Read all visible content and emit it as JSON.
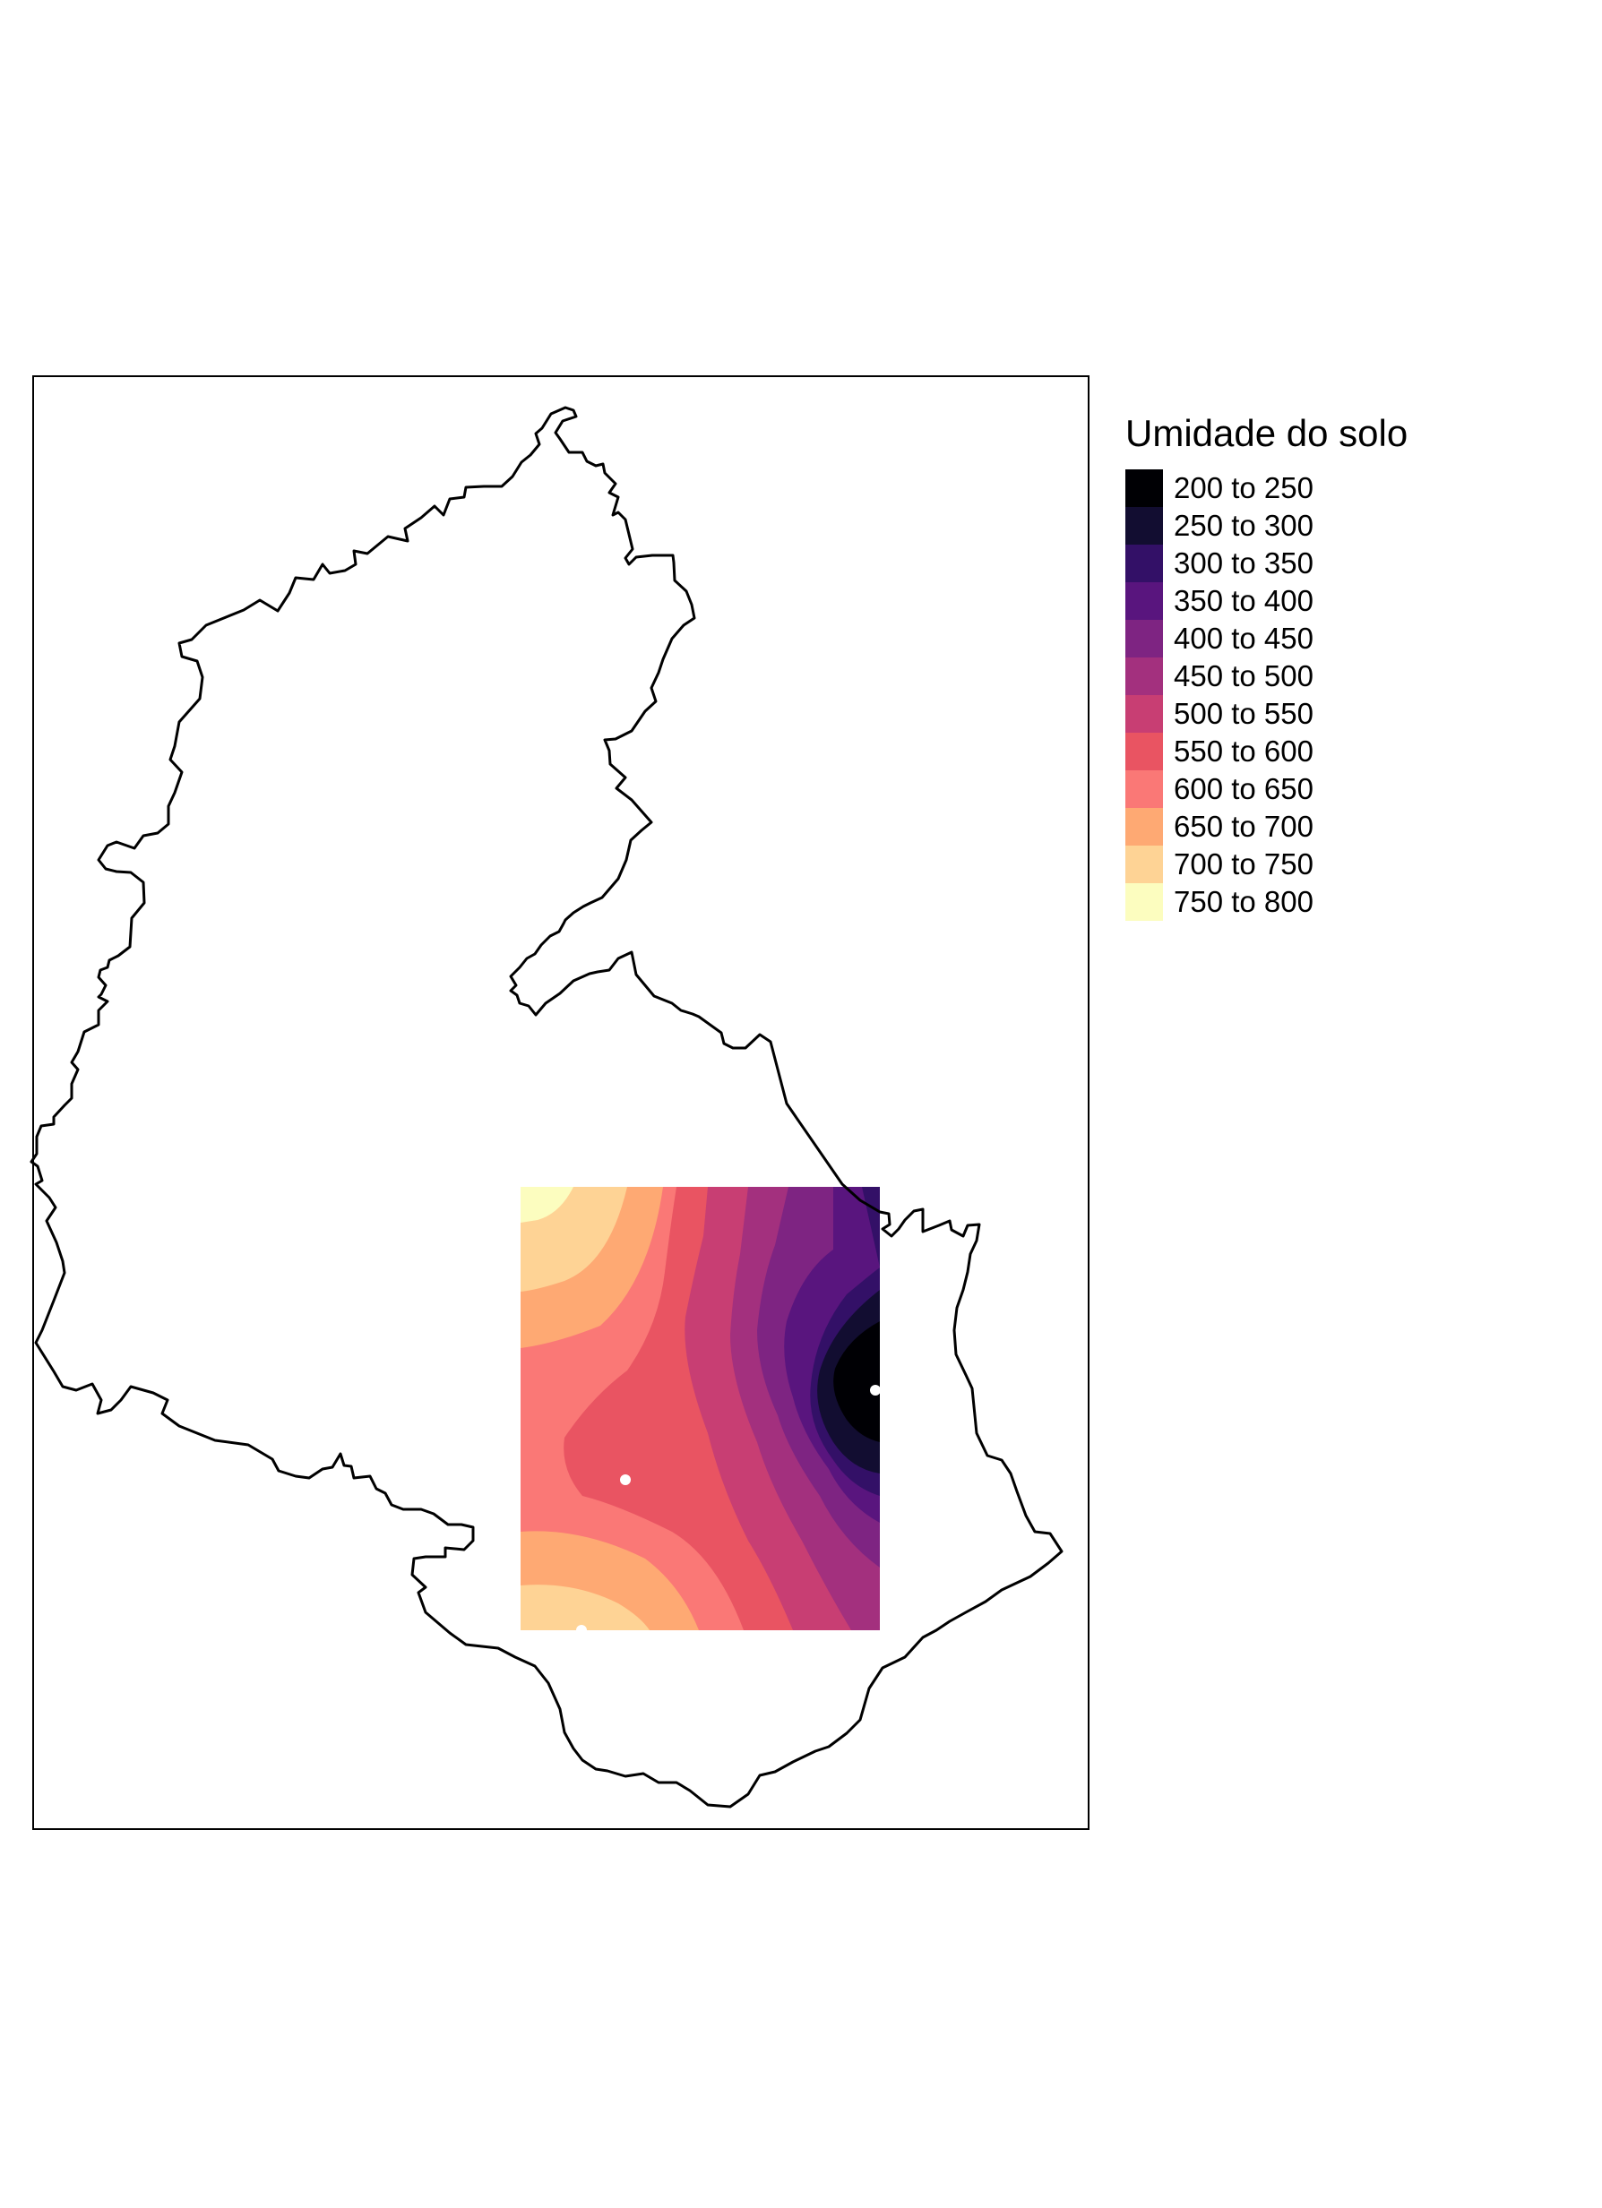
{
  "legend": {
    "title": "Umidade do solo",
    "classes": [
      {
        "label": "200 to 250",
        "color": "#000004"
      },
      {
        "label": "250 to 300",
        "color": "#120D31"
      },
      {
        "label": "300 to 350",
        "color": "#331067"
      },
      {
        "label": "350 to 400",
        "color": "#59157E"
      },
      {
        "label": "400 to 450",
        "color": "#7E2482"
      },
      {
        "label": "450 to 500",
        "color": "#A3307E"
      },
      {
        "label": "500 to 550",
        "color": "#C83E73"
      },
      {
        "label": "550 to 600",
        "color": "#E95462"
      },
      {
        "label": "600 to 650",
        "color": "#FA7876"
      },
      {
        "label": "650 to 700",
        "color": "#FEA973"
      },
      {
        "label": "700 to 750",
        "color": "#FED395"
      },
      {
        "label": "750 to 800",
        "color": "#FCFDBF"
      }
    ]
  },
  "sample_points_color": "#ffffff"
}
